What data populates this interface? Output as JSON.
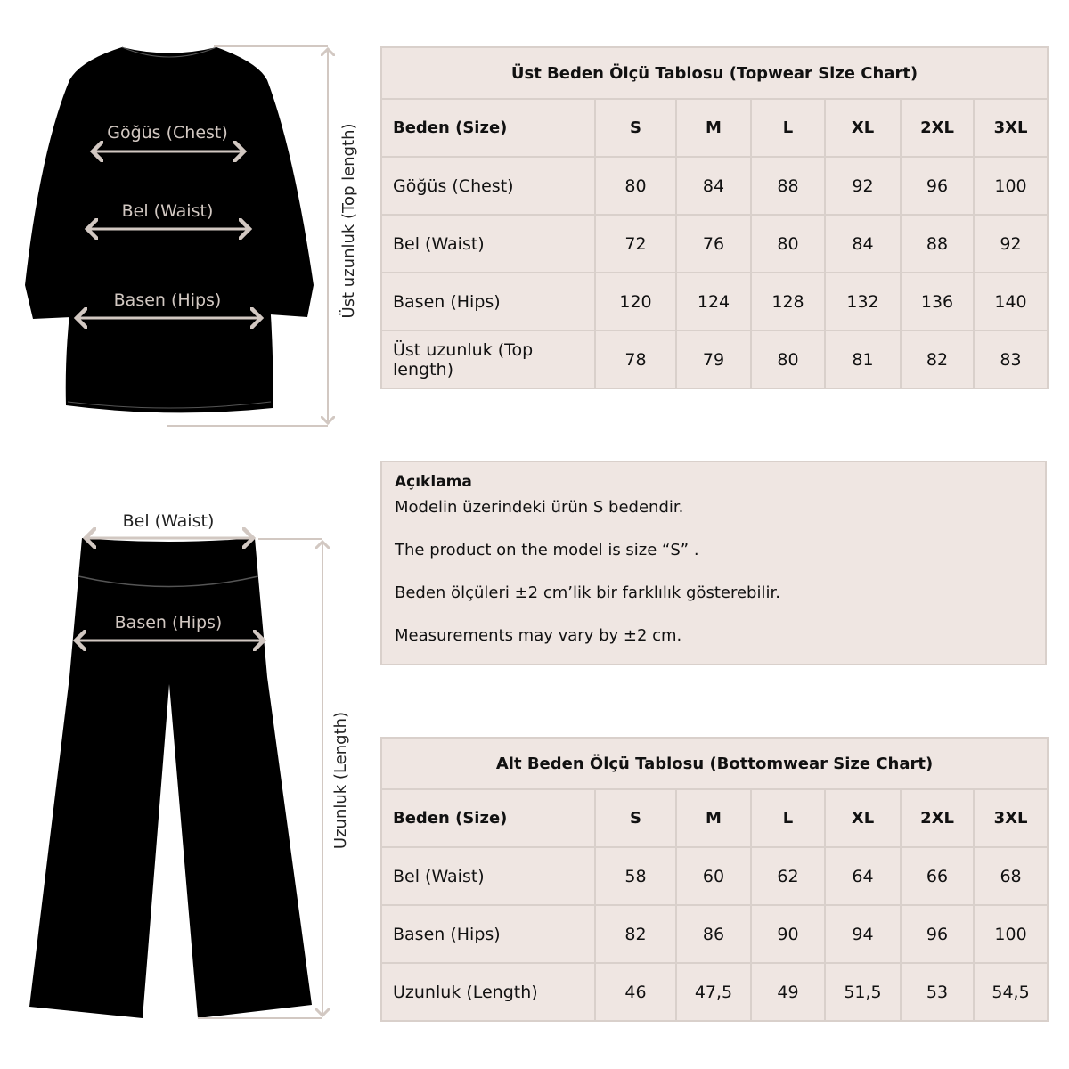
{
  "colors": {
    "table_bg": "#efe6e2",
    "border": "#d9d0cb",
    "garment": "#000000",
    "measure_line": "#d2c8c2"
  },
  "top_diagram": {
    "chest": "Göğüs (Chest)",
    "waist": "Bel (Waist)",
    "hips": "Basen (Hips)",
    "length": "Üst uzunluk (Top length)"
  },
  "bottom_diagram": {
    "waist": "Bel (Waist)",
    "hips": "Basen (Hips)",
    "length": "Uzunluk (Length)"
  },
  "top_table": {
    "title": "Üst Beden Ölçü Tablosu (Topwear Size Chart)",
    "header": [
      "Beden (Size)",
      "S",
      "M",
      "L",
      "XL",
      "2XL",
      "3XL"
    ],
    "rows": [
      [
        "Göğüs (Chest)",
        "80",
        "84",
        "88",
        "92",
        "96",
        "100"
      ],
      [
        "Bel (Waist)",
        "72",
        "76",
        "80",
        "84",
        "88",
        "92"
      ],
      [
        "Basen (Hips)",
        "120",
        "124",
        "128",
        "132",
        "136",
        "140"
      ],
      [
        "Üst uzunluk (Top length)",
        "78",
        "79",
        "80",
        "81",
        "82",
        "83"
      ]
    ]
  },
  "note": {
    "title": "Açıklama",
    "lines": [
      "Modelin üzerindeki ürün S bedendir.",
      "The product on the model is size “S” .",
      "Beden ölçüleri ±2 cm’lik bir farklılık gösterebilir.",
      "Measurements may vary by ±2 cm."
    ]
  },
  "bottom_table": {
    "title": "Alt Beden Ölçü Tablosu (Bottomwear Size Chart)",
    "header": [
      "Beden (Size)",
      "S",
      "M",
      "L",
      "XL",
      "2XL",
      "3XL"
    ],
    "rows": [
      [
        "Bel (Waist)",
        "58",
        "60",
        "62",
        "64",
        "66",
        "68"
      ],
      [
        "Basen (Hips)",
        "82",
        "86",
        "90",
        "94",
        "96",
        "100"
      ],
      [
        "Uzunluk (Length)",
        "46",
        "47,5",
        "49",
        "51,5",
        "53",
        "54,5"
      ]
    ]
  }
}
